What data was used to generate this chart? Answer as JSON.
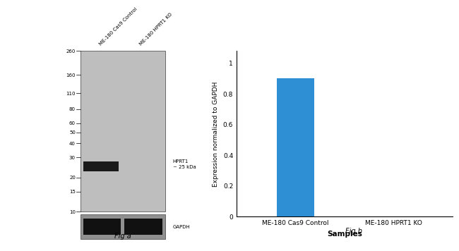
{
  "fig_title_a": "Fig a",
  "fig_title_b": "Fig b",
  "bar_categories": [
    "ME-180 Cas9 Control",
    "ME-180 HPRT1 KO"
  ],
  "bar_values": [
    0.9,
    0.0
  ],
  "bar_color": "#2E8FD5",
  "ylabel": "Expression normalized to GAPDH",
  "xlabel": "Samples",
  "ylim": [
    0,
    1.0
  ],
  "yticks": [
    0,
    0.2,
    0.4,
    0.6,
    0.8,
    1.0
  ],
  "wb_marker_labels": [
    "260",
    "160",
    "110",
    "80",
    "60",
    "50",
    "40",
    "30",
    "20",
    "15",
    "10"
  ],
  "wb_annotation": "HPRT1\n~ 25 kDa",
  "wb_gapdh_label": "GAPDH",
  "wb_col1_label": "ME-180 Cas9 Control",
  "wb_col2_label": "ME-180 HPRT1 KO",
  "bg_color": "#ffffff",
  "wb_bg_color": "#bebebe",
  "wb_band_color": "#1a1a1a",
  "wb_gapdh_bg": "#909090"
}
